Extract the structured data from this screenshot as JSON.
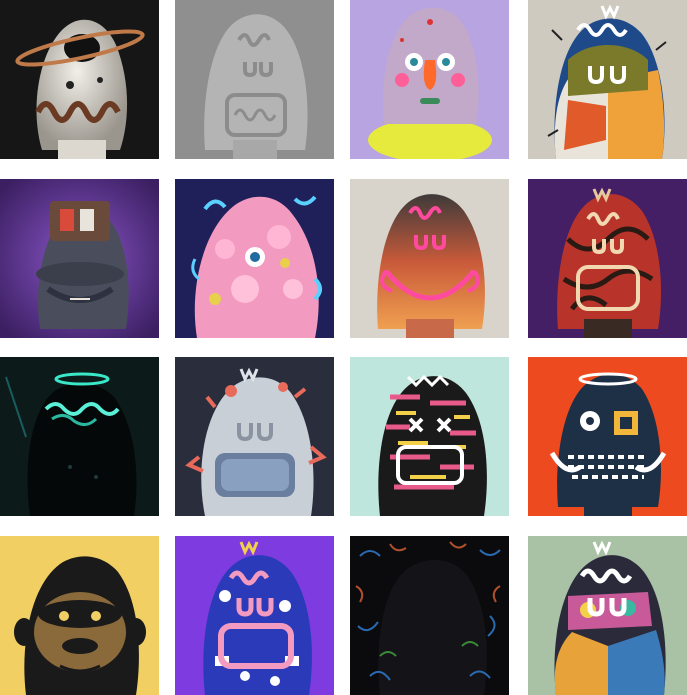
{
  "gallery": {
    "tiles": [
      {
        "name": "chrome-ufo-bust",
        "bg": "#161616"
      },
      {
        "name": "grey-clay-bust",
        "bg": "#8f8f8f"
      },
      {
        "name": "colorful-face-bust",
        "bg": "#b7a4e0"
      },
      {
        "name": "patchwork-bust",
        "bg": "#cfcac0"
      },
      {
        "name": "smoky-purple-bust",
        "bg": "#4d2a78"
      },
      {
        "name": "pink-blob-bust",
        "bg": "#1f1f5a"
      },
      {
        "name": "orange-texture-bust",
        "bg": "#d8d4cc"
      },
      {
        "name": "red-swirl-bust",
        "bg": "#451f66"
      },
      {
        "name": "neon-dark-bust",
        "bg": "#0c1a1a"
      },
      {
        "name": "crystal-bust",
        "bg": "#2a2e3c"
      },
      {
        "name": "typography-bust",
        "bg": "#bfe6dc"
      },
      {
        "name": "orange-graphic-bust",
        "bg": "#ee4a20"
      },
      {
        "name": "gorilla-bust",
        "bg": "#f2cf63"
      },
      {
        "name": "blue-icons-bust",
        "bg": "#7d3be0"
      },
      {
        "name": "dark-squiggle-bust",
        "bg": "#0b0b0e"
      },
      {
        "name": "collage-bust",
        "bg": "#a9c2a6"
      }
    ]
  }
}
